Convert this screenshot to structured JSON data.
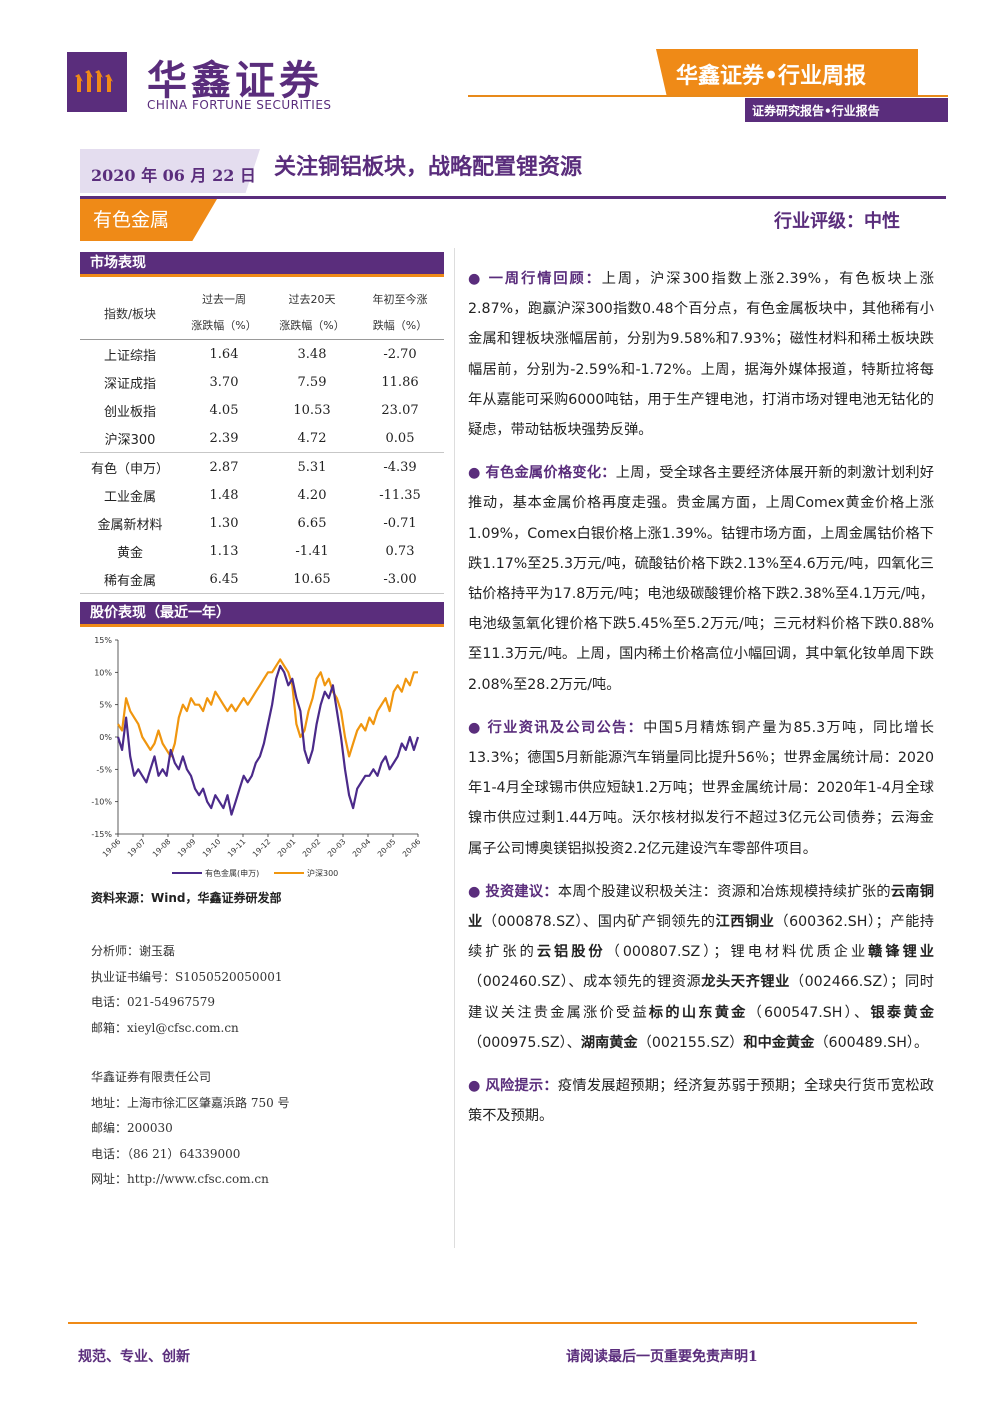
{
  "header": {
    "logo_cn": "华鑫证券",
    "logo_en": "CHINA FORTUNE SECURITIES",
    "banner_title": "华鑫证券•行业周报",
    "banner_sub": "证券研究报告•行业报告"
  },
  "report": {
    "date": "2020 年 06 月 22 日",
    "title": "关注铜铝板块，战略配置锂资源",
    "sector": "有色金属",
    "rating": "行业评级：中性"
  },
  "market": {
    "section_title": "市场表现",
    "col_header_index": "指数/板块",
    "col_headers": [
      [
        "过去一周",
        "涨跌幅（%）"
      ],
      [
        "过去20天",
        "涨跌幅（%）"
      ],
      [
        "年初至今涨",
        "跌幅（%）"
      ]
    ],
    "rows": [
      {
        "name": "上证综指",
        "w": "1.64",
        "m": "3.48",
        "y": "-2.70"
      },
      {
        "name": "深证成指",
        "w": "3.70",
        "m": "7.59",
        "y": "11.86"
      },
      {
        "name": "创业板指",
        "w": "4.05",
        "m": "10.53",
        "y": "23.07"
      },
      {
        "name": "沪深300",
        "w": "2.39",
        "m": "4.72",
        "y": "0.05"
      },
      {
        "name": "有色（申万）",
        "w": "2.87",
        "m": "5.31",
        "y": "-4.39"
      },
      {
        "name": "工业金属",
        "w": "1.48",
        "m": "4.20",
        "y": "-11.35"
      },
      {
        "name": "金属新材料",
        "w": "1.30",
        "m": "6.65",
        "y": "-0.71"
      },
      {
        "name": "黄金",
        "w": "1.13",
        "m": "-1.41",
        "y": "0.73"
      },
      {
        "name": "稀有金属",
        "w": "6.45",
        "m": "10.65",
        "y": "-3.00"
      }
    ]
  },
  "chart_section": {
    "title": "股价表现（最近一年）",
    "source": "资料来源：Wind，华鑫证券研发部"
  },
  "chart_data": {
    "type": "line",
    "x_ticks": [
      "19-06",
      "19-07",
      "19-08",
      "19-09",
      "19-10",
      "19-11",
      "19-12",
      "20-01",
      "20-02",
      "20-03",
      "20-04",
      "20-05",
      "20-06"
    ],
    "y_ticks": [
      "15%",
      "10%",
      "5%",
      "0%",
      "-5%",
      "-10%",
      "-15%"
    ],
    "ylim": [
      -15,
      15
    ],
    "colors": {
      "有色金属(申万)": "#4b2a8a",
      "沪深300": "#f0960f"
    },
    "series": [
      {
        "name": "有色金属(申万)",
        "values": [
          0,
          -2,
          3,
          -3,
          -6,
          -5,
          -6,
          -7,
          -5,
          -3,
          -6,
          -5,
          -6,
          -2,
          -4,
          -5,
          -3,
          -5,
          -6,
          -8,
          -9,
          -8,
          -10,
          -11,
          -9,
          -10,
          -11,
          -9,
          -12,
          -10,
          -8,
          -6,
          -7,
          -6,
          -4,
          -3,
          -1,
          2,
          5,
          9,
          11,
          10,
          8,
          9,
          6,
          4,
          -2,
          -4,
          -2,
          2,
          5,
          7,
          6,
          8,
          4,
          0,
          -5,
          -9,
          -11,
          -8,
          -7,
          -6,
          -6,
          -5,
          -6,
          -4,
          -3,
          -5,
          -4,
          -3,
          -1,
          -2,
          0,
          -2,
          0
        ]
      },
      {
        "name": "沪深300",
        "values": [
          2,
          1,
          6,
          4,
          3,
          2,
          0,
          -1,
          -2,
          -1,
          1,
          -1,
          -2,
          -3,
          -1,
          3,
          5,
          4,
          6,
          5,
          5,
          4,
          6,
          5,
          7,
          6,
          5,
          4,
          5,
          4,
          5,
          6,
          5,
          6,
          7,
          8,
          9,
          10,
          10,
          11,
          12,
          11,
          10,
          8,
          2,
          0,
          1,
          4,
          6,
          9,
          10,
          8,
          9,
          7,
          6,
          4,
          0,
          -3,
          -1,
          1,
          2,
          1,
          3,
          2,
          4,
          5,
          6,
          4,
          7,
          8,
          7,
          9,
          8,
          10,
          10
        ]
      }
    ]
  },
  "analyst": {
    "lines": [
      "分析师：谢玉磊",
      "执业证书编号：S1050520050001",
      "电话：021-54967579",
      "邮箱：xieyl@cfsc.com.cn"
    ],
    "company_lines": [
      "华鑫证券有限责任公司",
      "地址：上海市徐汇区肇嘉浜路 750 号",
      "邮编：200030",
      "电话：（86 21）64339000",
      "网址：http://www.cfsc.com.cn"
    ]
  },
  "body": {
    "p1_kw": "一周行情回顾：",
    "p1": "上周，沪深300指数上涨2.39%，有色板块上涨2.87%，跑赢沪深300指数0.48个百分点，有色金属板块中，其他稀有小金属和锂板块涨幅居前，分别为9.58%和7.93%；磁性材料和稀土板块跌幅居前，分别为-2.59%和-1.72%。上周，据海外媒体报道，特斯拉将每年从嘉能可采购6000吨钴，用于生产锂电池，打消市场对锂电池无钴化的疑虑，带动钴板块强势反弹。",
    "p2_kw": "有色金属价格变化：",
    "p2": "上周，受全球各主要经济体展开新的刺激计划利好推动，基本金属价格再度走强。贵金属方面，上周Comex黄金价格上涨1.09%，Comex白银价格上涨1.39%。钴锂市场方面，上周金属钴价格下跌1.17%至25.3万元/吨，硫酸钴价格下跌2.13%至4.6万元/吨，四氧化三钴价格持平为17.8万元/吨；电池级碳酸锂价格下跌2.38%至4.1万元/吨，电池级氢氧化锂价格下跌5.45%至5.2万元/吨；三元材料价格下跌0.88%至11.3万元/吨。上周，国内稀土价格高位小幅回调，其中氧化钕单周下跌2.08%至28.2万元/吨。",
    "p3_kw": "行业资讯及公司公告：",
    "p3": "中国5月精炼铜产量为85.3万吨，同比增长13.3%；德国5月新能源汽车销量同比提升56％；世界金属统计局：2020年1-4月全球锡市供应短缺1.2万吨；世界金属统计局：2020年1-4月全球镍市供应过剩1.44万吨。沃尔核材拟发行不超过3亿元公司债券；云海金属子公司博奥镁铝拟投资2.2亿元建设汽车零部件项目。",
    "p4_kw": "投资建议：",
    "p4_a": "本周个股建议积极关注：资源和冶炼规模持续扩张的",
    "p4_c1": "云南铜业",
    "p4_b": "（000878.SZ）、国内矿产铜领先的",
    "p4_c2": "江西铜业",
    "p4_c": "（600362.SH）；产能持续扩张的",
    "p4_c3": "云铝股份",
    "p4_d": "（000807.SZ）；锂电材料优质企业",
    "p4_c4": "赣锋锂业",
    "p4_e": "（002460.SZ）、成本领先的锂资源",
    "p4_c5": "龙头天齐锂业",
    "p4_f": "（002466.SZ）；同时建议关注贵金属涨价受益",
    "p4_c6": "标的山东黄金",
    "p4_g": "（600547.SH）、",
    "p4_c7": "银泰黄金",
    "p4_h": "（000975.SZ）、",
    "p4_c8": "湖南黄金",
    "p4_i": "（002155.SZ）",
    "p4_c9": "和中金黄金",
    "p4_j": "（600489.SH）。",
    "p5_kw": "风险提示：",
    "p5": "疫情发展超预期；经济复苏弱于预期；全球央行货币宽松政策不及预期。"
  },
  "footer": {
    "left": "规范、专业、创新",
    "right": "请阅读最后一页重要免责声明1"
  }
}
